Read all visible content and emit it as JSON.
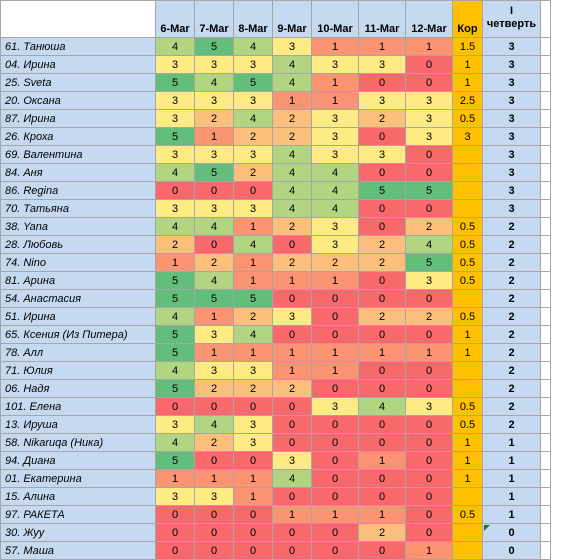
{
  "columns": [
    "6-Mar",
    "7-Mar",
    "8-Mar",
    "9-Mar",
    "10-Mar",
    "11-Mar",
    "12-Mar",
    "Кор"
  ],
  "quarter_header": [
    "I",
    "четверть"
  ],
  "colors": {
    "name_bg": "#c5d9f1",
    "header_bg": "#c5d9f1",
    "kor_bg": "#ffc000",
    "qtr_bg": "#c5d9f1",
    "score": {
      "0": "#f8696b",
      "1": "#fa9473",
      "2": "#fcbf7b",
      "3": "#ffeb84",
      "4": "#b1d580",
      "5": "#63be7b"
    }
  },
  "rows": [
    {
      "name": "61. Танюша",
      "scores": [
        "4",
        "5",
        "4",
        "3",
        "1",
        "1",
        "1"
      ],
      "kor": "1.5",
      "qtr": "3"
    },
    {
      "name": "04. Ирина",
      "scores": [
        "3",
        "3",
        "3",
        "4",
        "3",
        "3",
        "0"
      ],
      "kor": "1",
      "qtr": "3"
    },
    {
      "name": "25. Sveta",
      "scores": [
        "5",
        "4",
        "5",
        "4",
        "1",
        "0",
        "0"
      ],
      "kor": "1",
      "qtr": "3"
    },
    {
      "name": "20. Оксана",
      "scores": [
        "3",
        "3",
        "3",
        "1",
        "1",
        "3",
        "3"
      ],
      "kor": "2.5",
      "qtr": "3"
    },
    {
      "name": "87. Ирина",
      "scores": [
        "3",
        "2",
        "4",
        "2",
        "3",
        "2",
        "3"
      ],
      "kor": "0.5",
      "qtr": "3"
    },
    {
      "name": "26. Кроха",
      "scores": [
        "5",
        "1",
        "2",
        "2",
        "3",
        "0",
        "3"
      ],
      "kor": "3",
      "qtr": "3"
    },
    {
      "name": "69. Валентина",
      "scores": [
        "3",
        "3",
        "3",
        "4",
        "3",
        "3",
        "0"
      ],
      "kor": "",
      "qtr": "3"
    },
    {
      "name": "84. Аня",
      "scores": [
        "4",
        "5",
        "2",
        "4",
        "4",
        "0",
        "0"
      ],
      "kor": "",
      "qtr": "3"
    },
    {
      "name": "86. Regina",
      "scores": [
        "0",
        "0",
        "0",
        "4",
        "4",
        "5",
        "5"
      ],
      "kor": "",
      "qtr": "3"
    },
    {
      "name": "70. Татьяна",
      "scores": [
        "3",
        "3",
        "3",
        "4",
        "4",
        "0",
        "0"
      ],
      "kor": "",
      "qtr": "3"
    },
    {
      "name": "38. Yana",
      "scores": [
        "4",
        "4",
        "1",
        "2",
        "3",
        "0",
        "2"
      ],
      "kor": "0.5",
      "qtr": "2"
    },
    {
      "name": "28. Любовь",
      "scores": [
        "2",
        "0",
        "4",
        "0",
        "3",
        "2",
        "4"
      ],
      "kor": "0.5",
      "qtr": "2"
    },
    {
      "name": "74. Nino",
      "scores": [
        "1",
        "2",
        "1",
        "2",
        "2",
        "2",
        "5"
      ],
      "kor": "0.5",
      "qtr": "2"
    },
    {
      "name": "81. Арина",
      "scores": [
        "5",
        "4",
        "1",
        "1",
        "1",
        "0",
        "3"
      ],
      "kor": "0.5",
      "qtr": "2"
    },
    {
      "name": "54. Анастасия",
      "scores": [
        "5",
        "5",
        "5",
        "0",
        "0",
        "0",
        "0"
      ],
      "kor": "",
      "qtr": "2"
    },
    {
      "name": "51. Ирина",
      "scores": [
        "4",
        "1",
        "2",
        "3",
        "0",
        "2",
        "2"
      ],
      "kor": "0.5",
      "qtr": "2"
    },
    {
      "name": "65. Ксения (Из Питера)",
      "scores": [
        "5",
        "3",
        "4",
        "0",
        "0",
        "0",
        "0"
      ],
      "kor": "1",
      "qtr": "2"
    },
    {
      "name": "78. Алл",
      "scores": [
        "5",
        "1",
        "1",
        "1",
        "1",
        "1",
        "1"
      ],
      "kor": "1",
      "qtr": "2"
    },
    {
      "name": "71. Юлия",
      "scores": [
        "4",
        "3",
        "3",
        "1",
        "1",
        "0",
        "0"
      ],
      "kor": "",
      "qtr": "2"
    },
    {
      "name": "06. Надя",
      "scores": [
        "5",
        "2",
        "2",
        "2",
        "0",
        "0",
        "0"
      ],
      "kor": "",
      "qtr": "2"
    },
    {
      "name": "101. Елена",
      "scores": [
        "0",
        "0",
        "0",
        "0",
        "3",
        "4",
        "3"
      ],
      "kor": "0.5",
      "qtr": "2"
    },
    {
      "name": "13. Ируша",
      "scores": [
        "3",
        "4",
        "3",
        "0",
        "0",
        "0",
        "0"
      ],
      "kor": "0.5",
      "qtr": "2"
    },
    {
      "name": "58. Nikaruqa (Ника)",
      "scores": [
        "4",
        "2",
        "3",
        "0",
        "0",
        "0",
        "0"
      ],
      "kor": "1",
      "qtr": "1"
    },
    {
      "name": "94. Диана",
      "scores": [
        "5",
        "0",
        "0",
        "3",
        "0",
        "1",
        "0"
      ],
      "kor": "1",
      "qtr": "1"
    },
    {
      "name": "01. Екатерина",
      "scores": [
        "1",
        "1",
        "1",
        "4",
        "0",
        "0",
        "0"
      ],
      "kor": "1",
      "qtr": "1"
    },
    {
      "name": "15. Алина",
      "scores": [
        "3",
        "3",
        "1",
        "0",
        "0",
        "0",
        "0"
      ],
      "kor": "",
      "qtr": "1"
    },
    {
      "name": "97. РАКЕТА",
      "scores": [
        "0",
        "0",
        "0",
        "1",
        "1",
        "1",
        "0"
      ],
      "kor": "0.5",
      "qtr": "1"
    },
    {
      "name": "30. Жуу",
      "scores": [
        "0",
        "0",
        "0",
        "0",
        "0",
        "2",
        "0"
      ],
      "kor": "",
      "qtr": "0"
    },
    {
      "name": "57. Маша",
      "scores": [
        "0",
        "0",
        "0",
        "0",
        "0",
        "0",
        "1"
      ],
      "kor": "",
      "qtr": "0"
    }
  ]
}
